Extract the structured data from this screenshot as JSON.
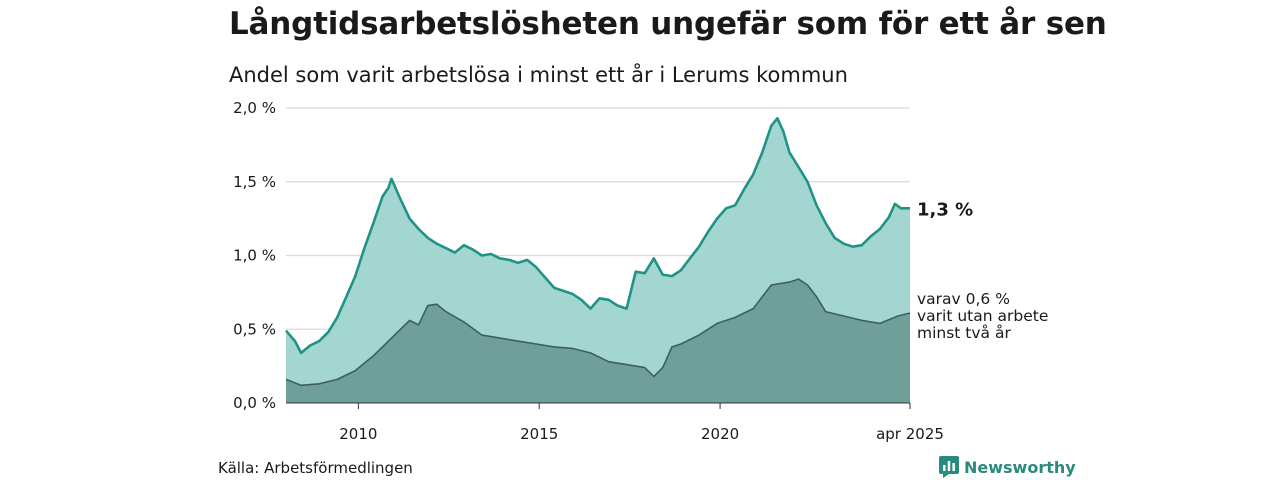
{
  "title": "Långtidsarbetslösheten ungefär som för ett år sen",
  "subtitle": "Andel som varit arbetslösa i minst ett år i Lerums kommun",
  "source": "Källa: Arbetsförmedlingen",
  "brand": "Newsworthy",
  "colors": {
    "total_fill": "#a4d6d1",
    "total_line": "#1f9486",
    "sub_fill": "#6e9f99",
    "sub_line": "#3f5f5b",
    "grid": "#d9d9d9",
    "brand": "#2b8a7e"
  },
  "chart_data": {
    "type": "area",
    "title": "Långtidsarbetslösheten ungefär som för ett år sen",
    "subtitle": "Andel som varit arbetslösa i minst ett år i Lerums kommun",
    "ylabel": "",
    "xlabel": "",
    "ylim": [
      0,
      2.0
    ],
    "xlim": [
      "2008-01",
      "2025-04"
    ],
    "grid": true,
    "y_ticks": [
      "0,0 %",
      "0,5 %",
      "1,0 %",
      "1,5 %",
      "2,0 %"
    ],
    "y_tick_values": [
      0,
      0.5,
      1.0,
      1.5,
      2.0
    ],
    "x_ticks": [
      "2010",
      "2015",
      "2020",
      "apr 2025"
    ],
    "x_tick_values": [
      "2010-01",
      "2015-01",
      "2020-01",
      "2025-04"
    ],
    "series": [
      {
        "name": "1,3 %",
        "points": [
          [
            "2008-01",
            0.49
          ],
          [
            "2008-04",
            0.42
          ],
          [
            "2008-06",
            0.34
          ],
          [
            "2008-09",
            0.39
          ],
          [
            "2008-12",
            0.42
          ],
          [
            "2009-03",
            0.48
          ],
          [
            "2009-06",
            0.58
          ],
          [
            "2009-09",
            0.72
          ],
          [
            "2009-12",
            0.86
          ],
          [
            "2010-03",
            1.05
          ],
          [
            "2010-06",
            1.22
          ],
          [
            "2010-09",
            1.4
          ],
          [
            "2010-11",
            1.46
          ],
          [
            "2010-12",
            1.52
          ],
          [
            "2011-03",
            1.38
          ],
          [
            "2011-06",
            1.25
          ],
          [
            "2011-09",
            1.18
          ],
          [
            "2011-12",
            1.12
          ],
          [
            "2012-03",
            1.08
          ],
          [
            "2012-06",
            1.05
          ],
          [
            "2012-09",
            1.02
          ],
          [
            "2012-12",
            1.07
          ],
          [
            "2013-03",
            1.04
          ],
          [
            "2013-06",
            1.0
          ],
          [
            "2013-09",
            1.01
          ],
          [
            "2013-12",
            0.98
          ],
          [
            "2014-03",
            0.97
          ],
          [
            "2014-06",
            0.95
          ],
          [
            "2014-09",
            0.97
          ],
          [
            "2014-12",
            0.92
          ],
          [
            "2015-03",
            0.85
          ],
          [
            "2015-06",
            0.78
          ],
          [
            "2015-09",
            0.76
          ],
          [
            "2015-12",
            0.74
          ],
          [
            "2016-03",
            0.7
          ],
          [
            "2016-06",
            0.64
          ],
          [
            "2016-09",
            0.71
          ],
          [
            "2016-12",
            0.7
          ],
          [
            "2017-03",
            0.66
          ],
          [
            "2017-06",
            0.64
          ],
          [
            "2017-09",
            0.89
          ],
          [
            "2017-12",
            0.88
          ],
          [
            "2018-03",
            0.98
          ],
          [
            "2018-06",
            0.87
          ],
          [
            "2018-09",
            0.86
          ],
          [
            "2018-12",
            0.9
          ],
          [
            "2019-03",
            0.98
          ],
          [
            "2019-06",
            1.06
          ],
          [
            "2019-09",
            1.16
          ],
          [
            "2019-12",
            1.25
          ],
          [
            "2020-03",
            1.32
          ],
          [
            "2020-06",
            1.34
          ],
          [
            "2020-09",
            1.45
          ],
          [
            "2020-12",
            1.55
          ],
          [
            "2021-03",
            1.7
          ],
          [
            "2021-06",
            1.88
          ],
          [
            "2021-08",
            1.93
          ],
          [
            "2021-10",
            1.84
          ],
          [
            "2021-12",
            1.7
          ],
          [
            "2022-03",
            1.6
          ],
          [
            "2022-06",
            1.5
          ],
          [
            "2022-09",
            1.34
          ],
          [
            "2022-12",
            1.22
          ],
          [
            "2023-03",
            1.12
          ],
          [
            "2023-06",
            1.08
          ],
          [
            "2023-09",
            1.06
          ],
          [
            "2023-12",
            1.07
          ],
          [
            "2024-03",
            1.13
          ],
          [
            "2024-06",
            1.18
          ],
          [
            "2024-09",
            1.26
          ],
          [
            "2024-11",
            1.35
          ],
          [
            "2025-01",
            1.32
          ],
          [
            "2025-04",
            1.32
          ]
        ]
      },
      {
        "name": "varav 0,6 % varit utan arbete minst två år",
        "points": [
          [
            "2008-01",
            0.16
          ],
          [
            "2008-06",
            0.12
          ],
          [
            "2008-12",
            0.13
          ],
          [
            "2009-06",
            0.16
          ],
          [
            "2009-12",
            0.22
          ],
          [
            "2010-06",
            0.32
          ],
          [
            "2010-12",
            0.44
          ],
          [
            "2011-06",
            0.56
          ],
          [
            "2011-09",
            0.53
          ],
          [
            "2011-12",
            0.66
          ],
          [
            "2012-03",
            0.67
          ],
          [
            "2012-06",
            0.62
          ],
          [
            "2012-12",
            0.55
          ],
          [
            "2013-06",
            0.46
          ],
          [
            "2013-12",
            0.44
          ],
          [
            "2014-06",
            0.42
          ],
          [
            "2014-12",
            0.4
          ],
          [
            "2015-06",
            0.38
          ],
          [
            "2015-12",
            0.37
          ],
          [
            "2016-06",
            0.34
          ],
          [
            "2016-12",
            0.28
          ],
          [
            "2017-06",
            0.26
          ],
          [
            "2017-12",
            0.24
          ],
          [
            "2018-03",
            0.18
          ],
          [
            "2018-06",
            0.24
          ],
          [
            "2018-09",
            0.38
          ],
          [
            "2018-12",
            0.4
          ],
          [
            "2019-06",
            0.46
          ],
          [
            "2019-12",
            0.54
          ],
          [
            "2020-06",
            0.58
          ],
          [
            "2020-12",
            0.64
          ],
          [
            "2021-06",
            0.8
          ],
          [
            "2021-12",
            0.82
          ],
          [
            "2022-03",
            0.84
          ],
          [
            "2022-06",
            0.8
          ],
          [
            "2022-09",
            0.72
          ],
          [
            "2022-12",
            0.62
          ],
          [
            "2023-06",
            0.59
          ],
          [
            "2023-12",
            0.56
          ],
          [
            "2024-06",
            0.54
          ],
          [
            "2024-12",
            0.59
          ],
          [
            "2025-04",
            0.61
          ]
        ]
      }
    ],
    "annotations": {
      "end_label_total": "1,3 %",
      "end_label_sub": [
        "varav 0,6 %",
        "varit utan arbete",
        "minst två år"
      ]
    }
  }
}
